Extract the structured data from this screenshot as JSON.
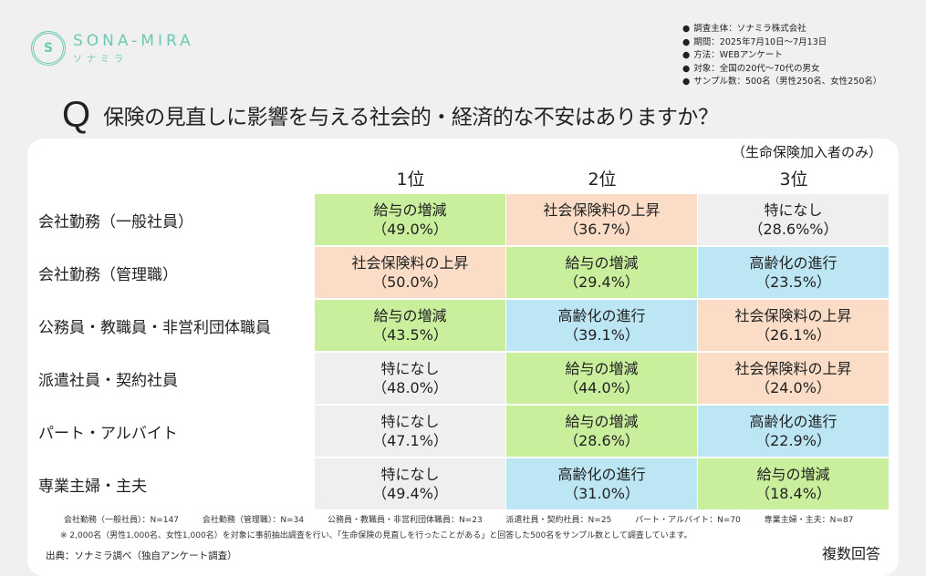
{
  "logo": {
    "en": "SONA-MIRA",
    "ja": "ソナミラ",
    "mark": "S",
    "color": "#6cc9b3"
  },
  "info": [
    "調査主体：ソナミラ株式会社",
    "期間：2025年7月10日～7月13日",
    "方法：WEBアンケート",
    "対象：全国の20代～70代の男女",
    "サンプル数：500名（男性250名、女性250名）"
  ],
  "question": {
    "mark": "Q",
    "text": "保険の見直しに影響を与える社会的・経済的な不安はありますか？",
    "subnote": "（生命保険加入者のみ）"
  },
  "columns": [
    "1位",
    "2位",
    "3位"
  ],
  "colors": {
    "green": "#c9ef9d",
    "peach": "#fbdcc6",
    "blue": "#bde6f5",
    "gray": "#efefef"
  },
  "rows": [
    {
      "label": "会社勤務（一般社員）",
      "cells": [
        {
          "item": "給与の増減",
          "pct": "（49.0%）",
          "color": "green"
        },
        {
          "item": "社会保険料の上昇",
          "pct": "（36.7%）",
          "color": "peach"
        },
        {
          "item": "特になし",
          "pct": "（28.6%%）",
          "color": "gray"
        }
      ]
    },
    {
      "label": "会社勤務（管理職）",
      "cells": [
        {
          "item": "社会保険料の上昇",
          "pct": "（50.0%）",
          "color": "peach"
        },
        {
          "item": "給与の増減",
          "pct": "（29.4%）",
          "color": "green"
        },
        {
          "item": "高齢化の進行",
          "pct": "（23.5%）",
          "color": "blue"
        }
      ]
    },
    {
      "label": "公務員・教職員・非営利団体職員",
      "cells": [
        {
          "item": "給与の増減",
          "pct": "（43.5%）",
          "color": "green"
        },
        {
          "item": "高齢化の進行",
          "pct": "（39.1%）",
          "color": "blue"
        },
        {
          "item": "社会保険料の上昇",
          "pct": "（26.1%）",
          "color": "peach"
        }
      ]
    },
    {
      "label": "派遣社員・契約社員",
      "cells": [
        {
          "item": "特になし",
          "pct": "（48.0%）",
          "color": "gray"
        },
        {
          "item": "給与の増減",
          "pct": "（44.0%）",
          "color": "green"
        },
        {
          "item": "社会保険料の上昇",
          "pct": "（24.0%）",
          "color": "peach"
        }
      ]
    },
    {
      "label": "パート・アルバイト",
      "cells": [
        {
          "item": "特になし",
          "pct": "（47.1%）",
          "color": "gray"
        },
        {
          "item": "給与の増減",
          "pct": "（28.6%）",
          "color": "green"
        },
        {
          "item": "高齢化の進行",
          "pct": "（22.9%）",
          "color": "blue"
        }
      ]
    },
    {
      "label": "専業主婦・主夫",
      "cells": [
        {
          "item": "特になし",
          "pct": "（49.4%）",
          "color": "gray"
        },
        {
          "item": "高齢化の進行",
          "pct": "（31.0%）",
          "color": "blue"
        },
        {
          "item": "給与の増減",
          "pct": "（18.4%）",
          "color": "green"
        }
      ]
    }
  ],
  "sample_sizes": [
    "会社勤務（一般社員）：N=147",
    "会社勤務（管理職）：N=34",
    "公務員・教職員・非営利団体職員：N=23",
    "派遣社員・契約社員：N=25",
    "パート・アルバイト：N=70",
    "専業主婦・主夫：N=87"
  ],
  "note": "※ 2,000名（男性1,000名、女性1,000名）を対象に事前抽出調査を行い、「生命保険の見直しを行ったことがある」と回答した500名をサンプル数として調査しています。",
  "source": "出典：ソナミラ調べ（独自アンケート調査）",
  "multi": "複数回答"
}
